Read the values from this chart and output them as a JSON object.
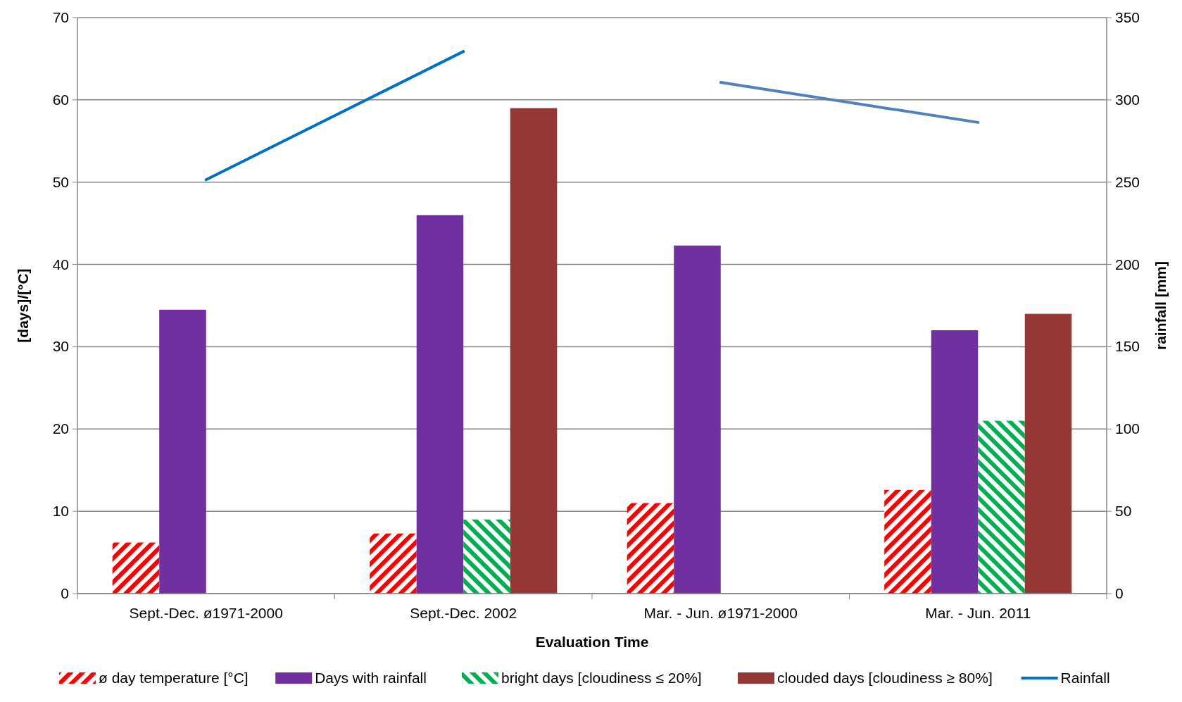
{
  "chart_data": {
    "type": "bar",
    "xlabel": "Evaluation Time",
    "ylabel": "[days]/[°C]",
    "y2label": "rainfall [mm]",
    "categories": [
      "Sept.-Dec. ø1971-2000",
      "Sept.-Dec. 2002",
      "Mar. - Jun. ø1971-2000",
      "Mar. - Jun. 2011"
    ],
    "series": [
      {
        "name": "ø day temperature [°C]",
        "color": "#ff0000",
        "values": [
          6.2,
          7.3,
          11.0,
          12.6
        ]
      },
      {
        "name": "Days with rainfall",
        "color": "#7030a0",
        "values": [
          34.5,
          46,
          42.3,
          32
        ]
      },
      {
        "name": "bright days [cloudiness ≤ 20%]",
        "color": "#00b050",
        "values": [
          null,
          9,
          null,
          21
        ]
      },
      {
        "name": "clouded days [cloudiness ≥ 80%]",
        "color": "#953735",
        "values": [
          null,
          59,
          null,
          34
        ]
      },
      {
        "name": "Rainfall",
        "type": "line",
        "axis": "y2",
        "color": "#0070c0",
        "values": [
          251.5,
          329.4,
          null,
          null
        ]
      },
      {
        "type": "line",
        "axis": "y2",
        "color": "#4f81bd",
        "values": [
          null,
          null,
          310.6,
          286.3
        ]
      }
    ],
    "ylim": [
      0,
      70
    ],
    "yticks": [
      0,
      10,
      20,
      30,
      40,
      50,
      60,
      70
    ],
    "y2lim": [
      0,
      350
    ],
    "y2ticks": [
      0,
      50,
      100,
      150,
      200,
      250,
      300,
      350
    ],
    "grid": "y",
    "legend": "bottom"
  }
}
